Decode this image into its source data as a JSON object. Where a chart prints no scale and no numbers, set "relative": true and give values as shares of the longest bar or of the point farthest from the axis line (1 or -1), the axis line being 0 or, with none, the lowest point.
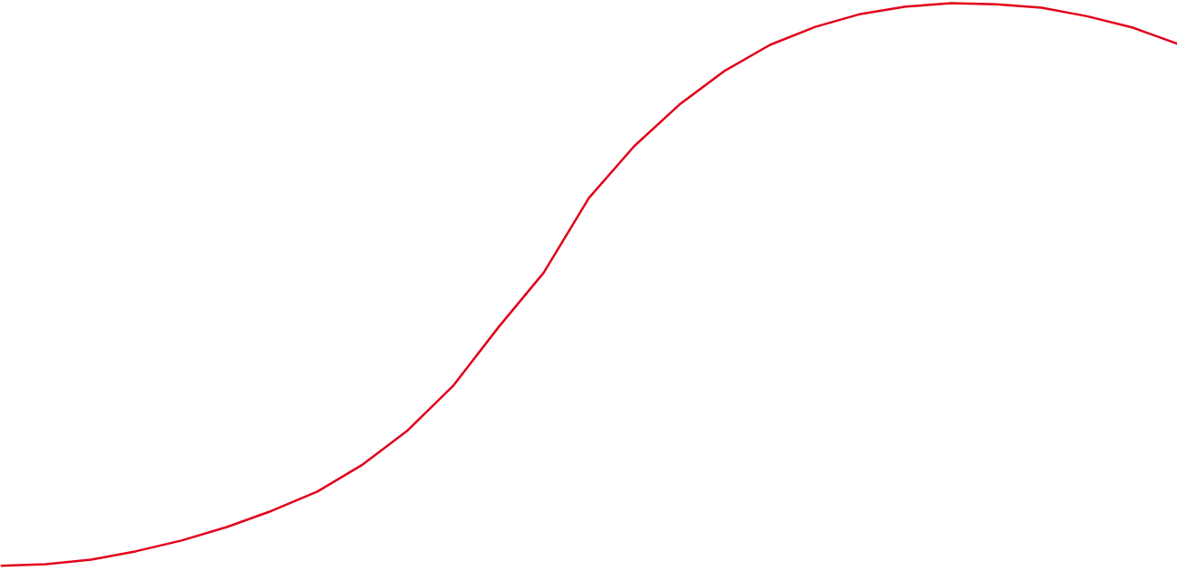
{
  "chart_data": {
    "type": "line",
    "relative": true,
    "categories": [
      null,
      null,
      null,
      null,
      null,
      null,
      null,
      null,
      null,
      null,
      null,
      null,
      null,
      null,
      null,
      null,
      null,
      null,
      null,
      null,
      null,
      null,
      null,
      null,
      null,
      null,
      null
    ],
    "series": [
      {
        "color": "#e2001a",
        "values": [
          0,
          0.003,
          0.011,
          0.026,
          0.045,
          0.069,
          0.098,
          0.132,
          0.18,
          0.241,
          0.32,
          0.424,
          0.521,
          0.654,
          0.746,
          0.82,
          0.88,
          0.926,
          0.958,
          0.981,
          0.994,
          1.0,
          0.998,
          0.992,
          0.977,
          0.957,
          0.928
        ]
      }
    ],
    "grid": false
  }
}
